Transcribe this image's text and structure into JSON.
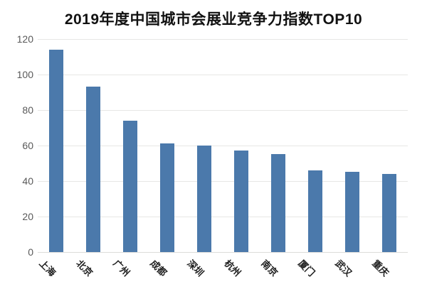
{
  "page": {
    "background_color": "#ffffff"
  },
  "chart_data": {
    "type": "bar",
    "title": "2019年度中国城市会展业竞争力指数TOP10",
    "categories": [
      "上海",
      "北京",
      "广州",
      "成都",
      "深圳",
      "杭州",
      "南京",
      "厦门",
      "武汉",
      "重庆"
    ],
    "values": [
      114,
      93,
      74,
      61,
      60,
      57,
      55,
      46,
      45,
      44
    ],
    "xlabel": "",
    "ylabel": "",
    "ylim": [
      0,
      120
    ],
    "yticks": [
      0,
      20,
      40,
      60,
      80,
      100,
      120
    ],
    "grid": true,
    "legend": false,
    "x_tick_rotation_deg": 45,
    "colors": {
      "bar": "#4b79ab",
      "title": "#111111",
      "y_tick_label": "#595959",
      "x_tick_label": "#1f1f1f",
      "gridline": "#e7e7e5",
      "baseline": "#dcdcda"
    }
  }
}
